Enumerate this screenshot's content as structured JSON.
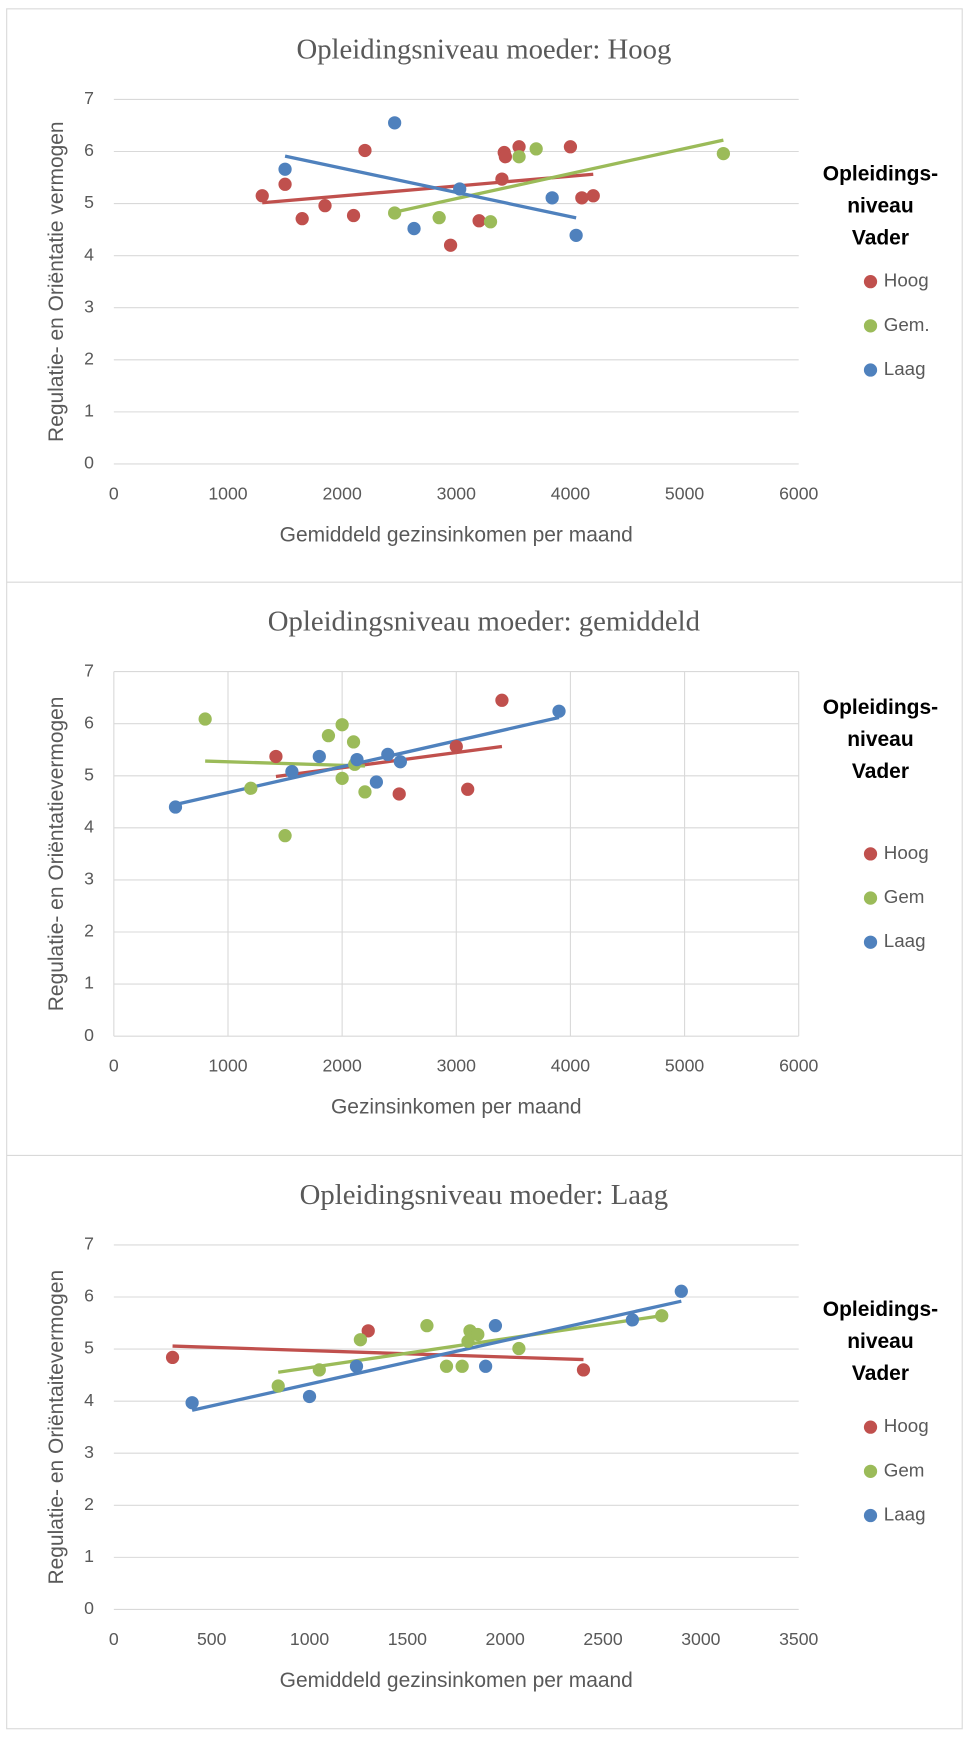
{
  "chart_data": [
    {
      "type": "scatter",
      "title": "Opleidingsniveau moeder: Hoog",
      "x_label": "Gemiddeld gezinsinkomen per maand",
      "y_label": "Regulatie- en Oriëntatie vermogen",
      "legend_title": "Opleidings- niveau Vader",
      "xlim": [
        0,
        6000
      ],
      "xticks": [
        0,
        1000,
        2000,
        3000,
        4000,
        5000,
        6000
      ],
      "ylim": [
        0,
        7
      ],
      "yticks": [
        0,
        1,
        2,
        3,
        4,
        5,
        6,
        7
      ],
      "grid": "y",
      "trendline": true,
      "series": [
        {
          "name": "Hoog",
          "color": "#c0504d",
          "x": [
            1300,
            1500,
            1650,
            1850,
            2100,
            2200,
            2950,
            3200,
            3400,
            3420,
            3430,
            3550,
            4000,
            4100,
            4200
          ],
          "y": [
            5.15,
            5.37,
            4.71,
            4.96,
            4.77,
            6.02,
            4.2,
            4.67,
            5.47,
            5.98,
            5.9,
            6.09,
            6.09,
            5.11,
            5.15
          ]
        },
        {
          "name": "Gem.",
          "color": "#9bbb59",
          "x": [
            2460,
            2850,
            3300,
            3550,
            3700,
            5340
          ],
          "y": [
            4.82,
            4.73,
            4.65,
            5.9,
            6.05,
            5.96
          ]
        },
        {
          "name": "Laag",
          "color": "#4f81bd",
          "x": [
            1500,
            2460,
            2630,
            3030,
            3840,
            4050
          ],
          "y": [
            5.66,
            6.55,
            4.52,
            5.28,
            5.11,
            4.39
          ]
        }
      ]
    },
    {
      "type": "scatter",
      "title": "Opleidingsniveau moeder: gemiddeld",
      "x_label": "Gezinsinkomen per maand",
      "y_label": "Regulatie- en Oriëntatievermogen",
      "legend_title": "Opleidings- niveau Vader",
      "xlim": [
        0,
        6000
      ],
      "xticks": [
        0,
        1000,
        2000,
        3000,
        4000,
        5000,
        6000
      ],
      "ylim": [
        0,
        7
      ],
      "yticks": [
        0,
        1,
        2,
        3,
        4,
        5,
        6,
        7
      ],
      "grid": "both",
      "trendline": true,
      "series": [
        {
          "name": "Hoog",
          "color": "#c0504d",
          "x": [
            1420,
            2500,
            3000,
            3100,
            3400
          ],
          "y": [
            5.37,
            4.65,
            5.56,
            4.74,
            6.45
          ]
        },
        {
          "name": "Gem",
          "color": "#9bbb59",
          "x": [
            800,
            1200,
            1500,
            1880,
            2000,
            2000,
            2100,
            2110,
            2200
          ],
          "y": [
            6.09,
            4.76,
            3.85,
            5.77,
            5.98,
            4.95,
            5.65,
            5.22,
            4.69
          ]
        },
        {
          "name": "Laag",
          "color": "#4f81bd",
          "x": [
            540,
            1560,
            1800,
            2130,
            2300,
            2400,
            2510,
            3900
          ],
          "y": [
            4.4,
            5.08,
            5.37,
            5.31,
            4.88,
            5.41,
            5.27,
            6.24
          ]
        }
      ]
    },
    {
      "type": "scatter",
      "title": "Opleidingsniveau moeder: Laag",
      "x_label": "Gemiddeld gezinsinkomen per maand",
      "y_label": "Regulatie- en Oriëntaitevermogen",
      "legend_title": "Opleidings- niveau Vader",
      "xlim": [
        0,
        3500
      ],
      "xticks": [
        0,
        500,
        1000,
        1500,
        2000,
        2500,
        3000,
        3500
      ],
      "ylim": [
        0,
        7
      ],
      "yticks": [
        0,
        1,
        2,
        3,
        4,
        5,
        6,
        7
      ],
      "grid": "y",
      "trendline": true,
      "series": [
        {
          "name": "Hoog",
          "color": "#c0504d",
          "x": [
            300,
            1300,
            2400
          ],
          "y": [
            4.84,
            5.35,
            4.6
          ]
        },
        {
          "name": "Gem",
          "color": "#9bbb59",
          "x": [
            840,
            1050,
            1260,
            1600,
            1700,
            1780,
            1810,
            1820,
            1860,
            2070,
            2800
          ],
          "y": [
            4.29,
            4.6,
            5.18,
            5.45,
            4.67,
            4.67,
            5.15,
            5.35,
            5.28,
            5.01,
            5.64
          ]
        },
        {
          "name": "Laag",
          "color": "#4f81bd",
          "x": [
            400,
            1000,
            1240,
            1900,
            1950,
            2650,
            2900
          ],
          "y": [
            3.97,
            4.09,
            4.67,
            4.67,
            5.45,
            5.56,
            6.11
          ]
        }
      ]
    }
  ]
}
